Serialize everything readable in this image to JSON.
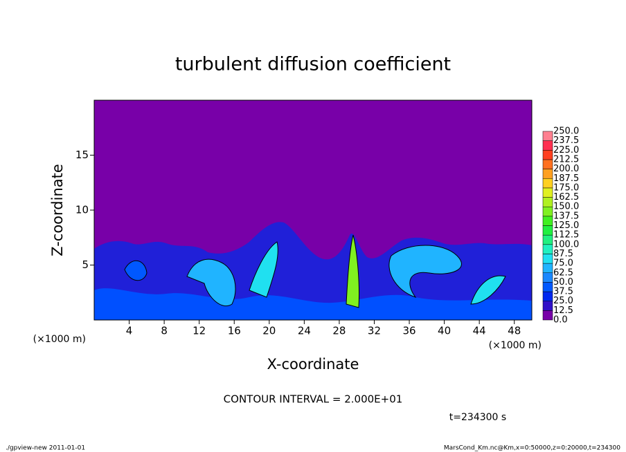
{
  "chart_data": {
    "type": "contour",
    "title": "turbulent diffusion coefficient",
    "xlabel": "X-coordinate",
    "ylabel": "Z-coordinate",
    "x_unit": "(×1000 m)",
    "y_unit": "(×1000 m)",
    "xlim": [
      0,
      50
    ],
    "ylim": [
      0,
      20
    ],
    "xticks": [
      4,
      8,
      12,
      16,
      20,
      24,
      28,
      32,
      36,
      40,
      44,
      48
    ],
    "yticks": [
      5,
      10,
      15
    ],
    "levels": [
      {
        "value": 0,
        "label": "0.0"
      },
      12.5,
      25,
      37.5,
      50,
      62.5,
      75,
      87.5,
      100,
      112.5,
      125,
      137.5,
      150,
      162.5,
      175,
      187.5,
      200,
      212.5,
      225,
      237.5,
      {
        "value": 250,
        "label": "250.0"
      }
    ],
    "colors": [
      "#7800a8",
      "#3010c8",
      "#0028f0",
      "#0058ff",
      "#1a88ff",
      "#20b4ff",
      "#20e0f0",
      "#20f0c0",
      "#20f080",
      "#20f040",
      "#40f020",
      "#80f020",
      "#b0f020",
      "#e0f020",
      "#ffd020",
      "#ffa020",
      "#ff7020",
      "#ff4020",
      "#ff3050",
      "#ff8090"
    ],
    "contour_interval": "CONTOUR INTERVAL = 2.000E+01",
    "time_label": "t=234300 s",
    "footer_left": "./gpview-new  2011-01-01",
    "footer_right": "MarsCond_Km.nc@Km,x=0:50000,z=0:20000,t=234300"
  }
}
